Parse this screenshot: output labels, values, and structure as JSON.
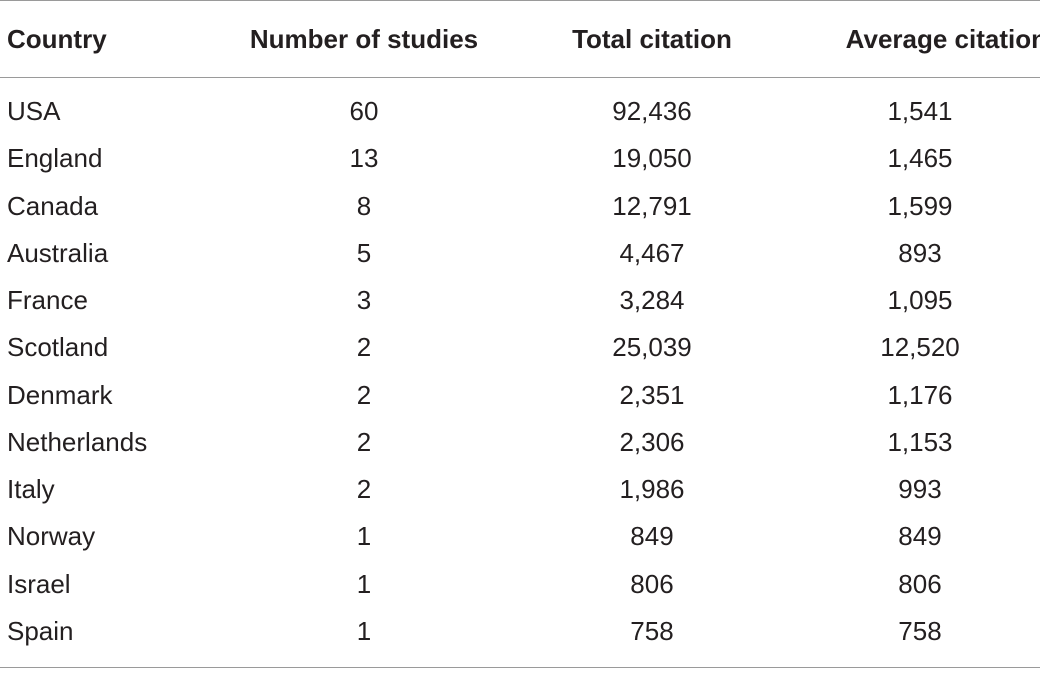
{
  "table": {
    "headers": [
      "Country",
      "Number of studies",
      "Total citation",
      "Average citation"
    ],
    "rows": [
      [
        "USA",
        "60",
        "92,436",
        "1,541"
      ],
      [
        "England",
        "13",
        "19,050",
        "1,465"
      ],
      [
        "Canada",
        "8",
        "12,791",
        "1,599"
      ],
      [
        "Australia",
        "5",
        "4,467",
        "893"
      ],
      [
        "France",
        "3",
        "3,284",
        "1,095"
      ],
      [
        "Scotland",
        "2",
        "25,039",
        "12,520"
      ],
      [
        "Denmark",
        "2",
        "2,351",
        "1,176"
      ],
      [
        "Netherlands",
        "2",
        "2,306",
        "1,153"
      ],
      [
        "Italy",
        "2",
        "1,986",
        "993"
      ],
      [
        "Norway",
        "1",
        "849",
        "849"
      ],
      [
        "Israel",
        "1",
        "806",
        "806"
      ],
      [
        "Spain",
        "1",
        "758",
        "758"
      ]
    ]
  }
}
